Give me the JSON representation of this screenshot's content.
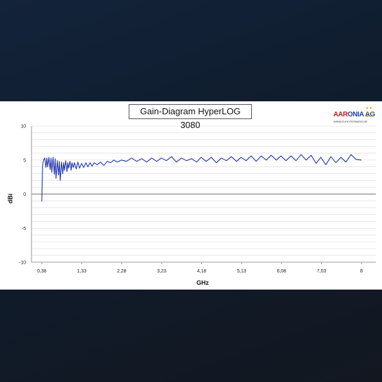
{
  "chart_data": {
    "type": "line",
    "title": "Gain-Diagram HyperLOG 3080",
    "xlabel": "GHz",
    "ylabel": "dBi",
    "ylim": [
      -10,
      10
    ],
    "yticks": [
      "10",
      "5",
      "0",
      "-5",
      "-10"
    ],
    "xlim": [
      0.38,
      8
    ],
    "xticks": [
      "0,38",
      "1,33",
      "2,28",
      "3,23",
      "4,18",
      "5,13",
      "6,08",
      "7,03",
      "8"
    ],
    "grid": "horizontal",
    "series": [
      {
        "color": "#1f35b0",
        "x": [
          0.38,
          0.4,
          0.42,
          0.45,
          0.48,
          0.5,
          0.52,
          0.55,
          0.58,
          0.6,
          0.62,
          0.65,
          0.68,
          0.7,
          0.72,
          0.75,
          0.78,
          0.8,
          0.82,
          0.85,
          0.88,
          0.9,
          0.92,
          0.95,
          0.98,
          1.0,
          1.02,
          1.05,
          1.08,
          1.1,
          1.13,
          1.16,
          1.2,
          1.24,
          1.28,
          1.33,
          1.38,
          1.43,
          1.48,
          1.53,
          1.58,
          1.63,
          1.7,
          1.78,
          1.86,
          1.94,
          2.02,
          2.1,
          2.18,
          2.28,
          2.4,
          2.52,
          2.64,
          2.76,
          2.88,
          3.0,
          3.12,
          3.23,
          3.35,
          3.47,
          3.59,
          3.71,
          3.83,
          3.95,
          4.07,
          4.18,
          4.3,
          4.42,
          4.54,
          4.66,
          4.78,
          4.9,
          5.02,
          5.13,
          5.25,
          5.37,
          5.49,
          5.61,
          5.73,
          5.85,
          5.97,
          6.08,
          6.2,
          6.32,
          6.44,
          6.56,
          6.68,
          6.8,
          6.92,
          7.03,
          7.15,
          7.27,
          7.39,
          7.51,
          7.63,
          7.75,
          7.87,
          8.0
        ],
        "y": [
          -1.1,
          4.2,
          5.0,
          5.3,
          3.9,
          5.3,
          4.0,
          5.4,
          3.6,
          5.3,
          3.2,
          5.4,
          2.9,
          5.2,
          2.3,
          4.9,
          2.8,
          4.8,
          2.0,
          4.7,
          3.0,
          4.6,
          3.5,
          4.9,
          3.3,
          4.6,
          3.8,
          4.8,
          3.5,
          4.6,
          3.9,
          4.6,
          3.7,
          4.7,
          3.8,
          4.5,
          3.9,
          4.6,
          4.0,
          4.6,
          4.1,
          4.6,
          4.3,
          4.7,
          4.2,
          4.8,
          4.6,
          5.0,
          4.7,
          5.0,
          4.8,
          5.3,
          4.8,
          5.2,
          4.7,
          5.3,
          4.8,
          5.3,
          4.9,
          5.5,
          4.7,
          5.3,
          4.9,
          5.2,
          4.7,
          5.4,
          4.8,
          5.4,
          4.6,
          5.3,
          4.9,
          5.5,
          4.8,
          5.4,
          4.9,
          5.6,
          4.8,
          5.6,
          5.0,
          5.7,
          5.0,
          5.6,
          4.9,
          5.6,
          4.9,
          5.8,
          5.0,
          5.7,
          4.5,
          5.4,
          4.3,
          5.5,
          4.6,
          5.4,
          4.7,
          5.8,
          5.1,
          5.0
        ]
      }
    ]
  },
  "logo": {
    "brand_part1": "AAR",
    "brand_part2": "ONIA AG",
    "url": "WWW.ELEKTROSMOG.DE"
  }
}
